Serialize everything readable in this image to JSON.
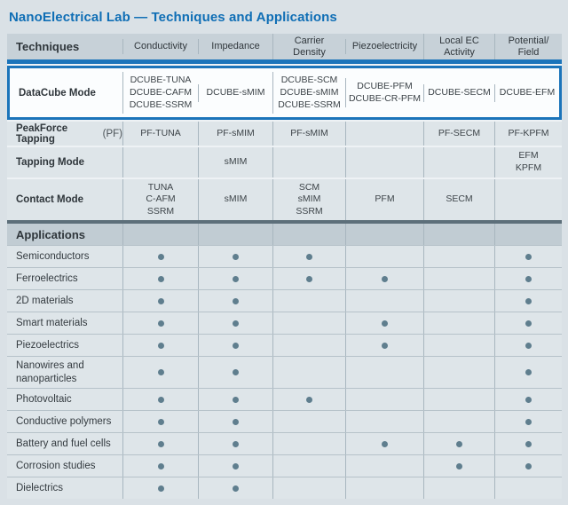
{
  "title": "NanoElectrical Lab — Techniques and Applications",
  "colors": {
    "bg": "#dae1e6",
    "band": "#c7d1d8",
    "band2": "#c1ccd3",
    "row": "#dee5e9",
    "sep": "#a8b6bf",
    "row-gap": "#eef2f5",
    "app-sep": "#b6c2c9",
    "blue": "#1b74ba",
    "title-blue": "#0f6eb5",
    "white-row": "#fbfdfe",
    "dark-rule": "#5d6f7a",
    "dot": "#5f7e8e",
    "text-dark": "#2f363b",
    "text-cell": "#3d4449"
  },
  "table": {
    "corner_label": "Techniques",
    "columns": [
      "Conductivity",
      "Impedance",
      "Carrier\nDensity",
      "Piezoelectricity",
      "Local EC\nActivity",
      "Potential/\nField"
    ],
    "datacube_row": {
      "label": "DataCube Mode",
      "cells": [
        [
          "DCUBE-TUNA",
          "DCUBE-CAFM",
          "DCUBE-SSRM"
        ],
        [
          "DCUBE-sMIM"
        ],
        [
          "DCUBE-SCM",
          "DCUBE-sMIM",
          "DCUBE-SSRM"
        ],
        [
          "DCUBE-PFM",
          "DCUBE-CR-PFM"
        ],
        [
          "DCUBE-SECM"
        ],
        [
          "DCUBE-EFM"
        ]
      ]
    },
    "technique_rows": [
      {
        "label": "PeakForce Tapping",
        "suffix": "(PF)",
        "height": "h27",
        "cells": [
          [
            "PF-TUNA"
          ],
          [
            "PF-sMIM"
          ],
          [
            "PF-sMIM"
          ],
          [],
          [
            "PF-SECM"
          ],
          [
            "PF-KPFM"
          ]
        ]
      },
      {
        "label": "Tapping Mode",
        "suffix": "",
        "height": "h30",
        "cells": [
          [],
          [
            "sMIM"
          ],
          [],
          [],
          [],
          [
            "EFM",
            "KPFM"
          ]
        ]
      },
      {
        "label": "Contact Mode",
        "suffix": "",
        "height": "h40",
        "cells": [
          [
            "TUNA",
            "C-AFM",
            "SSRM"
          ],
          [
            "sMIM"
          ],
          [
            "SCM",
            "sMIM",
            "SSRM"
          ],
          [
            "PFM"
          ],
          [
            "SECM"
          ],
          []
        ]
      }
    ],
    "applications_label": "Applications",
    "application_rows": [
      {
        "label": "Semiconductors",
        "dots": [
          1,
          1,
          1,
          0,
          0,
          1
        ]
      },
      {
        "label": "Ferroelectrics",
        "dots": [
          1,
          1,
          1,
          1,
          0,
          1
        ]
      },
      {
        "label": "2D materials",
        "dots": [
          1,
          1,
          0,
          0,
          0,
          1
        ]
      },
      {
        "label": "Smart materials",
        "dots": [
          1,
          1,
          0,
          1,
          0,
          1
        ]
      },
      {
        "label": "Piezoelectrics",
        "dots": [
          1,
          1,
          0,
          1,
          0,
          1
        ]
      },
      {
        "label": "Nanowires and nanoparticles",
        "dots": [
          1,
          1,
          0,
          0,
          0,
          1
        ]
      },
      {
        "label": "Photovoltaic",
        "dots": [
          1,
          1,
          1,
          0,
          0,
          1
        ]
      },
      {
        "label": "Conductive polymers",
        "dots": [
          1,
          1,
          0,
          0,
          0,
          1
        ]
      },
      {
        "label": "Battery and fuel cells",
        "dots": [
          1,
          1,
          0,
          1,
          1,
          1
        ]
      },
      {
        "label": "Corrosion studies",
        "dots": [
          1,
          1,
          0,
          0,
          1,
          1
        ]
      },
      {
        "label": "Dielectrics",
        "dots": [
          1,
          1,
          0,
          0,
          0,
          0
        ]
      }
    ]
  }
}
